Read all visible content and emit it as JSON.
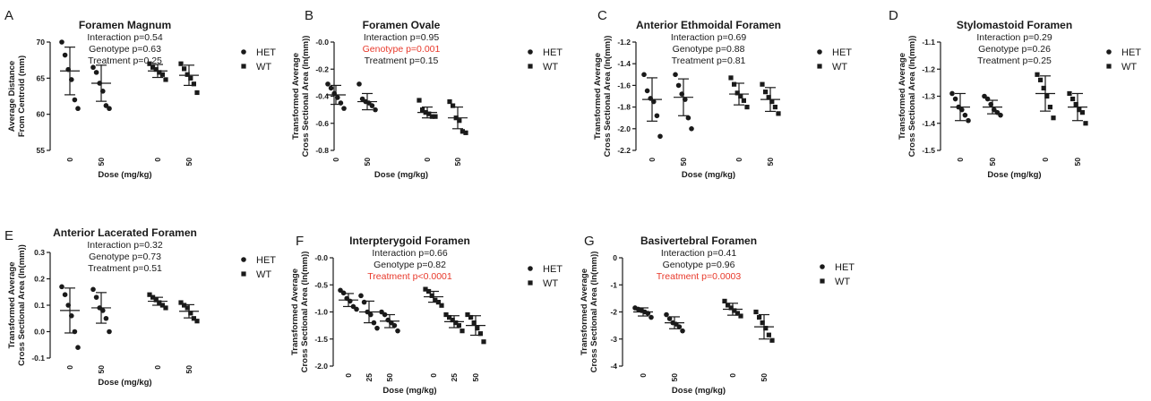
{
  "colors": {
    "ink": "#1a1a1a",
    "significant": "#e8392b"
  },
  "panels": [
    {
      "letter": "A",
      "title": "Foramen Magnum",
      "stats": [
        {
          "text": "Interaction p=0.54",
          "sig": false
        },
        {
          "text": "Genotype p=0.63",
          "sig": false
        },
        {
          "text": "Treatment p=0.25",
          "sig": false
        }
      ],
      "ylabel": [
        "Average Distance",
        "From Centroid (mm)"
      ],
      "xlabel": "Dose (mg/kg)",
      "legend": [
        "HET",
        "WT"
      ],
      "chart_data": {
        "type": "scatter",
        "ylim": [
          55,
          70
        ],
        "yticks": [
          "55",
          "60",
          "65",
          "70"
        ],
        "groups": [
          {
            "series": "HET",
            "dose": "0",
            "mean": 66.0,
            "sd": 3.3,
            "points": [
              70.0,
              68.2,
              66.2,
              64.8,
              62.0,
              60.8
            ]
          },
          {
            "series": "HET",
            "dose": "50",
            "mean": 64.3,
            "sd": 2.5,
            "points": [
              66.5,
              65.8,
              64.3,
              63.2,
              61.2,
              60.8
            ]
          },
          {
            "series": "WT",
            "dose": "0",
            "mean": 66.0,
            "sd": 0.9,
            "points": [
              67.0,
              66.5,
              66.2,
              65.8,
              65.5,
              64.8
            ]
          },
          {
            "series": "WT",
            "dose": "50",
            "mean": 65.4,
            "sd": 1.4,
            "points": [
              67.0,
              66.3,
              65.5,
              65.0,
              64.2,
              63.0
            ]
          }
        ]
      }
    },
    {
      "letter": "B",
      "title": "Foramen Ovale",
      "stats": [
        {
          "text": "Interaction p=0.95",
          "sig": false
        },
        {
          "text": "Genotype p=0.001",
          "sig": true
        },
        {
          "text": "Treatment p=0.15",
          "sig": false
        }
      ],
      "ylabel": [
        "Transformed Average",
        "Cross Sectional Area (ln(mm))"
      ],
      "xlabel": "Dose (mg/kg)",
      "legend": [
        "HET",
        "WT"
      ],
      "chart_data": {
        "type": "scatter",
        "ylim": [
          -0.8,
          0.0
        ],
        "yticks": [
          "-0.8",
          "-0.6",
          "-0.4",
          "-0.2",
          "-0.0"
        ],
        "groups": [
          {
            "series": "HET",
            "dose": "0",
            "mean": -0.39,
            "sd": 0.07,
            "points": [
              -0.31,
              -0.34,
              -0.38,
              -0.41,
              -0.45,
              -0.49
            ]
          },
          {
            "series": "HET",
            "dose": "50",
            "mean": -0.44,
            "sd": 0.06,
            "points": [
              -0.31,
              -0.42,
              -0.44,
              -0.45,
              -0.47,
              -0.5
            ]
          },
          {
            "series": "WT",
            "dose": "0",
            "mean": -0.52,
            "sd": 0.04,
            "points": [
              -0.43,
              -0.5,
              -0.52,
              -0.53,
              -0.55,
              -0.55
            ]
          },
          {
            "series": "WT",
            "dose": "50",
            "mean": -0.56,
            "sd": 0.08,
            "points": [
              -0.44,
              -0.47,
              -0.56,
              -0.58,
              -0.66,
              -0.67
            ]
          }
        ]
      }
    },
    {
      "letter": "C",
      "title": "Anterior Ethmoidal Foramen",
      "stats": [
        {
          "text": "Interaction p=0.69",
          "sig": false
        },
        {
          "text": "Genotype p=0.88",
          "sig": false
        },
        {
          "text": "Treatment p=0.81",
          "sig": false
        }
      ],
      "ylabel": [
        "Transformed Average",
        "Cross Sectional Area (ln(mm))"
      ],
      "xlabel": "Dose (mg/kg)",
      "legend": [
        "HET",
        "WT"
      ],
      "chart_data": {
        "type": "scatter",
        "ylim": [
          -2.2,
          -1.2
        ],
        "yticks": [
          "-2.2",
          "-2.0",
          "-1.8",
          "-1.6",
          "-1.4",
          "-1.2"
        ],
        "groups": [
          {
            "series": "HET",
            "dose": "0",
            "mean": -1.73,
            "sd": 0.2,
            "points": [
              -1.5,
              -1.65,
              -1.72,
              -1.75,
              -1.88,
              -2.07
            ]
          },
          {
            "series": "HET",
            "dose": "50",
            "mean": -1.71,
            "sd": 0.17,
            "points": [
              -1.5,
              -1.6,
              -1.68,
              -1.73,
              -1.9,
              -2.0
            ]
          },
          {
            "series": "WT",
            "dose": "0",
            "mean": -1.68,
            "sd": 0.1,
            "points": [
              -1.53,
              -1.59,
              -1.67,
              -1.7,
              -1.74,
              -1.8
            ]
          },
          {
            "series": "WT",
            "dose": "50",
            "mean": -1.73,
            "sd": 0.11,
            "points": [
              -1.59,
              -1.66,
              -1.71,
              -1.75,
              -1.8,
              -1.86
            ]
          }
        ]
      }
    },
    {
      "letter": "D",
      "title": "Stylomastoid Foramen",
      "stats": [
        {
          "text": "Interaction p=0.29",
          "sig": false
        },
        {
          "text": "Genotype p=0.26",
          "sig": false
        },
        {
          "text": "Treatment p=0.25",
          "sig": false
        }
      ],
      "ylabel": [
        "Transformed Average",
        "Cross Sectional Area (ln(mm))"
      ],
      "xlabel": "Dose (mg/kg)",
      "legend": [
        "HET",
        "WT"
      ],
      "chart_data": {
        "type": "scatter",
        "ylim": [
          -1.5,
          -1.1
        ],
        "yticks": [
          "-1.5",
          "-1.4",
          "-1.3",
          "-1.2",
          "-1.1"
        ],
        "groups": [
          {
            "series": "HET",
            "dose": "0",
            "mean": -1.34,
            "sd": 0.05,
            "points": [
              -1.29,
              -1.31,
              -1.34,
              -1.35,
              -1.37,
              -1.39
            ]
          },
          {
            "series": "HET",
            "dose": "50",
            "mean": -1.34,
            "sd": 0.025,
            "points": [
              -1.3,
              -1.31,
              -1.33,
              -1.35,
              -1.36,
              -1.37
            ]
          },
          {
            "series": "WT",
            "dose": "0",
            "mean": -1.29,
            "sd": 0.065,
            "points": [
              -1.22,
              -1.24,
              -1.27,
              -1.3,
              -1.34,
              -1.38
            ]
          },
          {
            "series": "WT",
            "dose": "50",
            "mean": -1.34,
            "sd": 0.05,
            "points": [
              -1.29,
              -1.31,
              -1.33,
              -1.35,
              -1.36,
              -1.4
            ]
          }
        ]
      }
    },
    {
      "letter": "E",
      "title": "Anterior Lacerated Foramen",
      "stats": [
        {
          "text": "Interaction p=0.32",
          "sig": false
        },
        {
          "text": "Genotype p=0.73",
          "sig": false
        },
        {
          "text": "Treatment p=0.51",
          "sig": false
        }
      ],
      "ylabel": [
        "Transformed Average",
        "Cross Sectional Area (ln(mm))"
      ],
      "xlabel": "Dose (mg/kg)",
      "legend": [
        "HET",
        "WT"
      ],
      "chart_data": {
        "type": "scatter",
        "ylim": [
          -0.1,
          0.3
        ],
        "yticks": [
          "-0.1",
          "0.0",
          "0.1",
          "0.2",
          "0.3"
        ],
        "groups": [
          {
            "series": "HET",
            "dose": "0",
            "mean": 0.08,
            "sd": 0.085,
            "points": [
              0.17,
              0.14,
              0.1,
              0.06,
              0.0,
              -0.06
            ]
          },
          {
            "series": "HET",
            "dose": "50",
            "mean": 0.09,
            "sd": 0.058,
            "points": [
              0.16,
              0.13,
              0.09,
              0.08,
              0.05,
              0.0
            ]
          },
          {
            "series": "WT",
            "dose": "0",
            "mean": 0.115,
            "sd": 0.015,
            "points": [
              0.14,
              0.13,
              0.12,
              0.11,
              0.1,
              0.09
            ]
          },
          {
            "series": "WT",
            "dose": "50",
            "mean": 0.077,
            "sd": 0.025,
            "points": [
              0.11,
              0.1,
              0.09,
              0.07,
              0.05,
              0.04
            ]
          }
        ]
      }
    },
    {
      "letter": "F",
      "title": "Interpterygoid Foramen",
      "stats": [
        {
          "text": "Interaction p=0.66",
          "sig": false
        },
        {
          "text": "Genotype p=0.82",
          "sig": false
        },
        {
          "text": "Treatment p<0.0001",
          "sig": true
        }
      ],
      "ylabel": [
        "Transformed Average",
        "Cross Sectional Area (ln(mm))"
      ],
      "xlabel": "Dose (mg/kg)",
      "legend": [
        "HET",
        "WT"
      ],
      "chart_data": {
        "type": "scatter",
        "ylim": [
          -2.0,
          0.0
        ],
        "yticks": [
          "-2.0",
          "-1.5",
          "-1.0",
          "-0.5",
          "-0.0"
        ],
        "groups": [
          {
            "series": "HET",
            "dose": "0",
            "mean": -0.78,
            "sd": 0.12,
            "points": [
              -0.6,
              -0.65,
              -0.75,
              -0.8,
              -0.9,
              -0.95
            ]
          },
          {
            "series": "HET",
            "dose": "25",
            "mean": -1.0,
            "sd": 0.2,
            "points": [
              -0.7,
              -0.82,
              -1.0,
              -1.05,
              -1.2,
              -1.3
            ]
          },
          {
            "series": "HET",
            "dose": "50",
            "mean": -1.17,
            "sd": 0.12,
            "points": [
              -1.0,
              -1.05,
              -1.15,
              -1.2,
              -1.25,
              -1.35
            ]
          },
          {
            "series": "WT",
            "dose": "0",
            "mean": -0.72,
            "sd": 0.1,
            "points": [
              -0.58,
              -0.62,
              -0.7,
              -0.78,
              -0.82,
              -0.88
            ]
          },
          {
            "series": "WT",
            "dose": "25",
            "mean": -1.18,
            "sd": 0.11,
            "points": [
              -1.05,
              -1.1,
              -1.15,
              -1.2,
              -1.25,
              -1.35
            ]
          },
          {
            "series": "WT",
            "dose": "50",
            "mean": -1.25,
            "sd": 0.18,
            "points": [
              -1.05,
              -1.1,
              -1.2,
              -1.3,
              -1.4,
              -1.55
            ]
          }
        ]
      }
    },
    {
      "letter": "G",
      "title": "Basivertebral Foramen",
      "stats": [
        {
          "text": "Interaction p=0.41",
          "sig": false
        },
        {
          "text": "Genotype p=0.96",
          "sig": false
        },
        {
          "text": "Treatment p=0.0003",
          "sig": true
        }
      ],
      "ylabel": [
        "Transformed Average",
        "Cross Sectional Area (ln(mm))"
      ],
      "xlabel": "Dose (mg/kg)",
      "legend": [
        "HET",
        "WT"
      ],
      "chart_data": {
        "type": "scatter",
        "ylim": [
          -4,
          0
        ],
        "yticks": [
          "-4",
          "-3",
          "-2",
          "-1",
          "0"
        ],
        "groups": [
          {
            "series": "HET",
            "dose": "0",
            "mean": -2.0,
            "sd": 0.15,
            "points": [
              -1.85,
              -1.9,
              -1.95,
              -2.0,
              -2.05,
              -2.2
            ]
          },
          {
            "series": "HET",
            "dose": "50",
            "mean": -2.4,
            "sd": 0.22,
            "points": [
              -2.1,
              -2.25,
              -2.4,
              -2.45,
              -2.55,
              -2.7
            ]
          },
          {
            "series": "WT",
            "dose": "0",
            "mean": -1.9,
            "sd": 0.22,
            "points": [
              -1.6,
              -1.75,
              -1.85,
              -1.95,
              -2.05,
              -2.15
            ]
          },
          {
            "series": "WT",
            "dose": "50",
            "mean": -2.55,
            "sd": 0.45,
            "points": [
              -2.0,
              -2.2,
              -2.4,
              -2.6,
              -2.85,
              -3.05
            ]
          }
        ]
      }
    }
  ]
}
